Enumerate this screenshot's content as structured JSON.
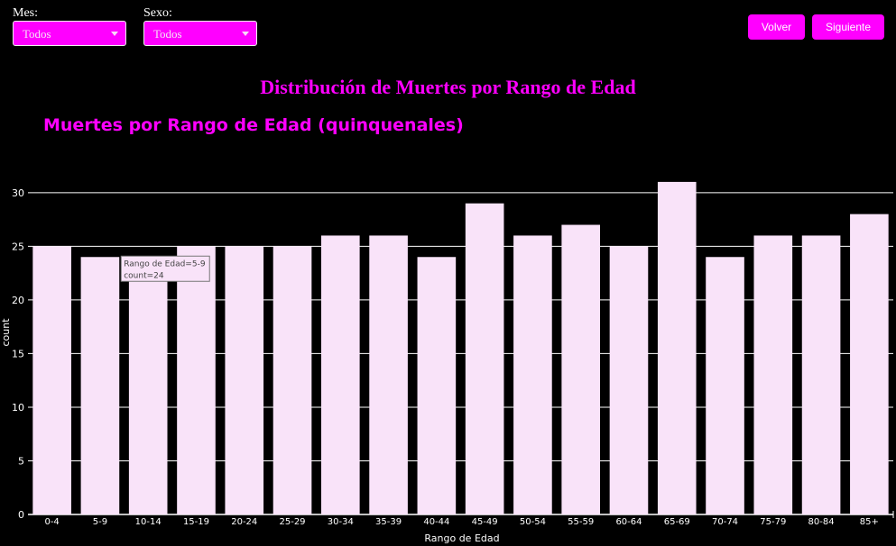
{
  "filters": {
    "mes": {
      "label": "Mes:",
      "value": "Todos"
    },
    "sexo": {
      "label": "Sexo:",
      "value": "Todos"
    }
  },
  "nav": {
    "back_label": "Volver",
    "next_label": "Siguiente"
  },
  "page_title": "Distribución de Muertes por Rango de Edad",
  "colors": {
    "accent": "#ff00ff",
    "bar_fill": "#f9e3f9",
    "background": "#000000",
    "grid": "#ffffff"
  },
  "chart_data": {
    "type": "bar",
    "title": "Muertes por Rango de Edad (quinquenales)",
    "xlabel": "Rango de Edad",
    "ylabel": "count",
    "ylim": [
      0,
      32
    ],
    "yticks": [
      0,
      5,
      10,
      15,
      20,
      25,
      30
    ],
    "grid": true,
    "categories": [
      "0-4",
      "5-9",
      "10-14",
      "15-19",
      "20-24",
      "25-29",
      "30-34",
      "35-39",
      "40-44",
      "45-49",
      "50-54",
      "55-59",
      "60-64",
      "65-69",
      "70-74",
      "75-79",
      "80-84",
      "85+"
    ],
    "values": [
      25,
      24,
      23,
      25,
      25,
      25,
      26,
      26,
      24,
      29,
      26,
      27,
      25,
      31,
      24,
      26,
      26,
      28
    ],
    "tooltip": {
      "category_index": 1,
      "line1": "Rango de Edad=5-9",
      "line2": "count=24"
    }
  }
}
